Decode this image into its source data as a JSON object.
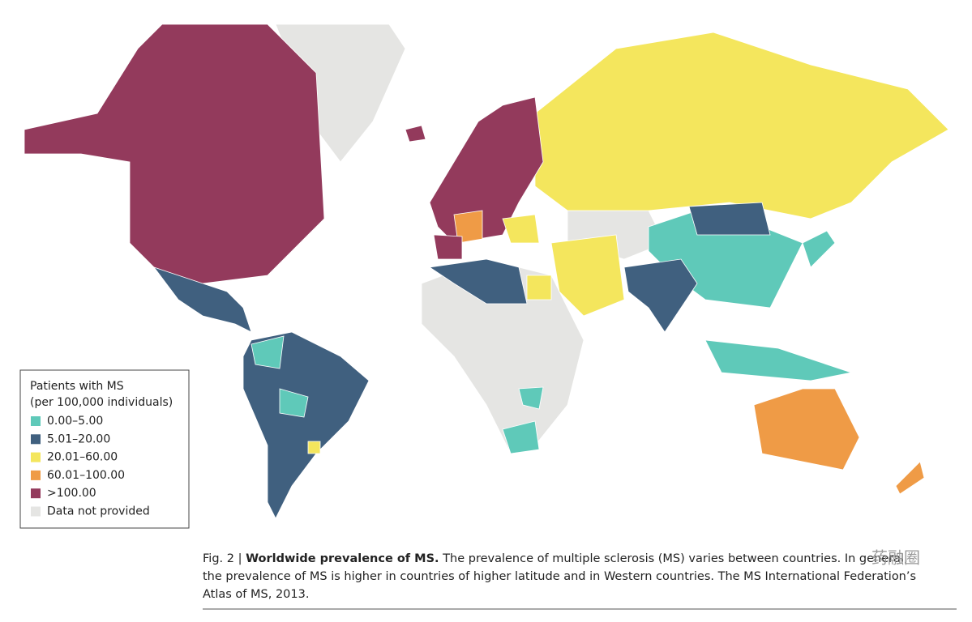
{
  "legend": {
    "title": [
      "Patients with MS",
      "(per 100,000 individuals)"
    ],
    "items": [
      {
        "label": "0.00–5.00",
        "color": "#5fc9b9"
      },
      {
        "label": "5.01–20.00",
        "color": "#40607f"
      },
      {
        "label": "20.01–60.00",
        "color": "#f4e65d"
      },
      {
        "label": "60.01–100.00",
        "color": "#ef9b46"
      },
      {
        "label": ">100.00",
        "color": "#933a5c"
      },
      {
        "label": "Data not provided",
        "color": "#e5e5e3"
      }
    ]
  },
  "caption": {
    "figure_label": "Fig. 2 |",
    "heading": "Worldwide prevalence of MS.",
    "lines": [
      "The prevalence of multiple sclerosis (MS) varies between countries. In general,",
      "the prevalence of MS is higher in countries of higher latitude and in Western countries. The MS International Federation’s",
      "Atlas of MS, 2013."
    ]
  },
  "watermark": "药融圈"
}
